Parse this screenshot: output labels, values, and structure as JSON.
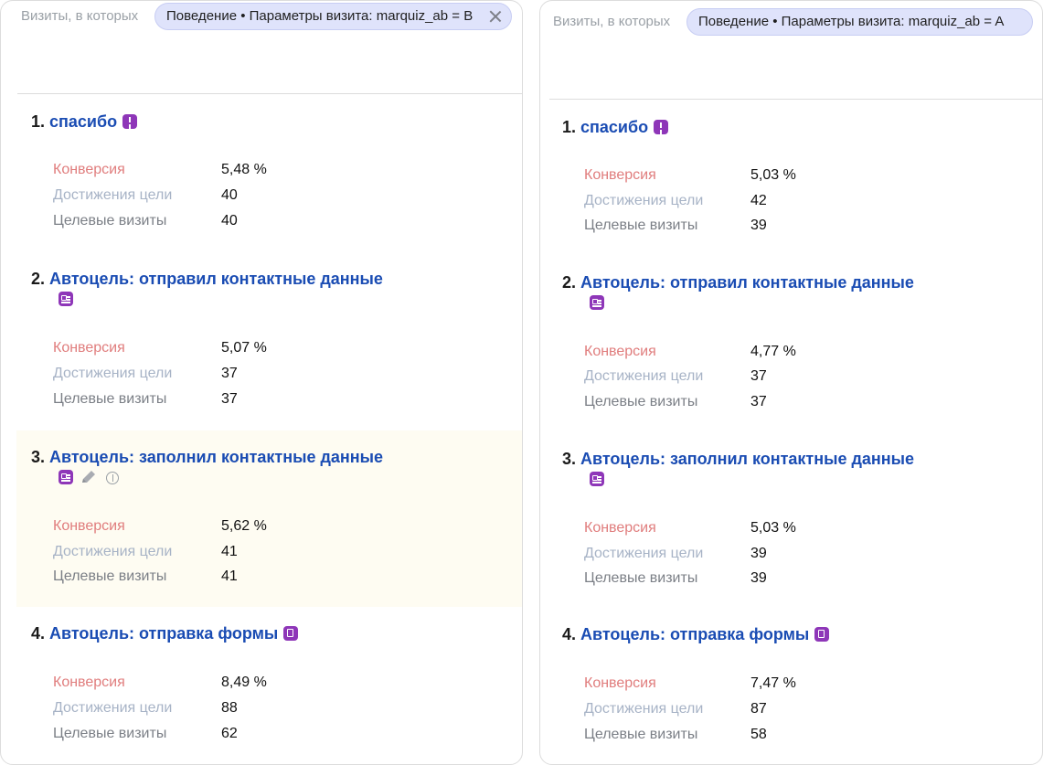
{
  "filter_label": "Визиты, в которых",
  "metric_labels": {
    "conversion": "Конверсия",
    "achievements": "Достижения цели",
    "target_visits": "Целевые визиты"
  },
  "colors": {
    "goal_link": "#1a4cb3",
    "badge": "#8e36b8",
    "chip_bg": "#dfe3fb",
    "conversion_label": "#e07d7d",
    "achievements_label": "#a7b3c6",
    "highlight_row": "#fefcf2"
  },
  "panels": [
    {
      "segment_chip": "Поведение • Параметры визита: marquiz_ab = B",
      "goals": [
        {
          "num": "1.",
          "name": "спасибо",
          "icons": [
            "exclamation-icon"
          ],
          "conversion": "5,48 %",
          "achievements": "40",
          "target_visits": "40"
        },
        {
          "num": "2.",
          "name": "Автоцель: отправил контактные данные",
          "icons": [
            "contact-card-icon"
          ],
          "conversion": "5,07 %",
          "achievements": "37",
          "target_visits": "37"
        },
        {
          "num": "3.",
          "name": "Автоцель: заполнил контактные данные",
          "icons": [
            "contact-card-icon",
            "pencil-icon",
            "info-icon"
          ],
          "conversion": "5,62 %",
          "achievements": "41",
          "target_visits": "41",
          "highlighted": true
        },
        {
          "num": "4.",
          "name": "Автоцель: отправка формы",
          "icons": [
            "form-icon"
          ],
          "conversion": "8,49 %",
          "achievements": "88",
          "target_visits": "62"
        }
      ]
    },
    {
      "segment_chip": "Поведение • Параметры визита: marquiz_ab = A",
      "goals": [
        {
          "num": "1.",
          "name": "спасибо",
          "icons": [
            "exclamation-icon"
          ],
          "conversion": "5,03 %",
          "achievements": "42",
          "target_visits": "39"
        },
        {
          "num": "2.",
          "name": "Автоцель: отправил контактные данные",
          "icons": [
            "contact-card-icon"
          ],
          "conversion": "4,77 %",
          "achievements": "37",
          "target_visits": "37"
        },
        {
          "num": "3.",
          "name": "Автоцель: заполнил контактные данные",
          "icons": [
            "contact-card-icon"
          ],
          "conversion": "5,03 %",
          "achievements": "39",
          "target_visits": "39"
        },
        {
          "num": "4.",
          "name": "Автоцель: отправка формы",
          "icons": [
            "form-icon"
          ],
          "conversion": "7,47 %",
          "achievements": "87",
          "target_visits": "58"
        }
      ]
    }
  ]
}
